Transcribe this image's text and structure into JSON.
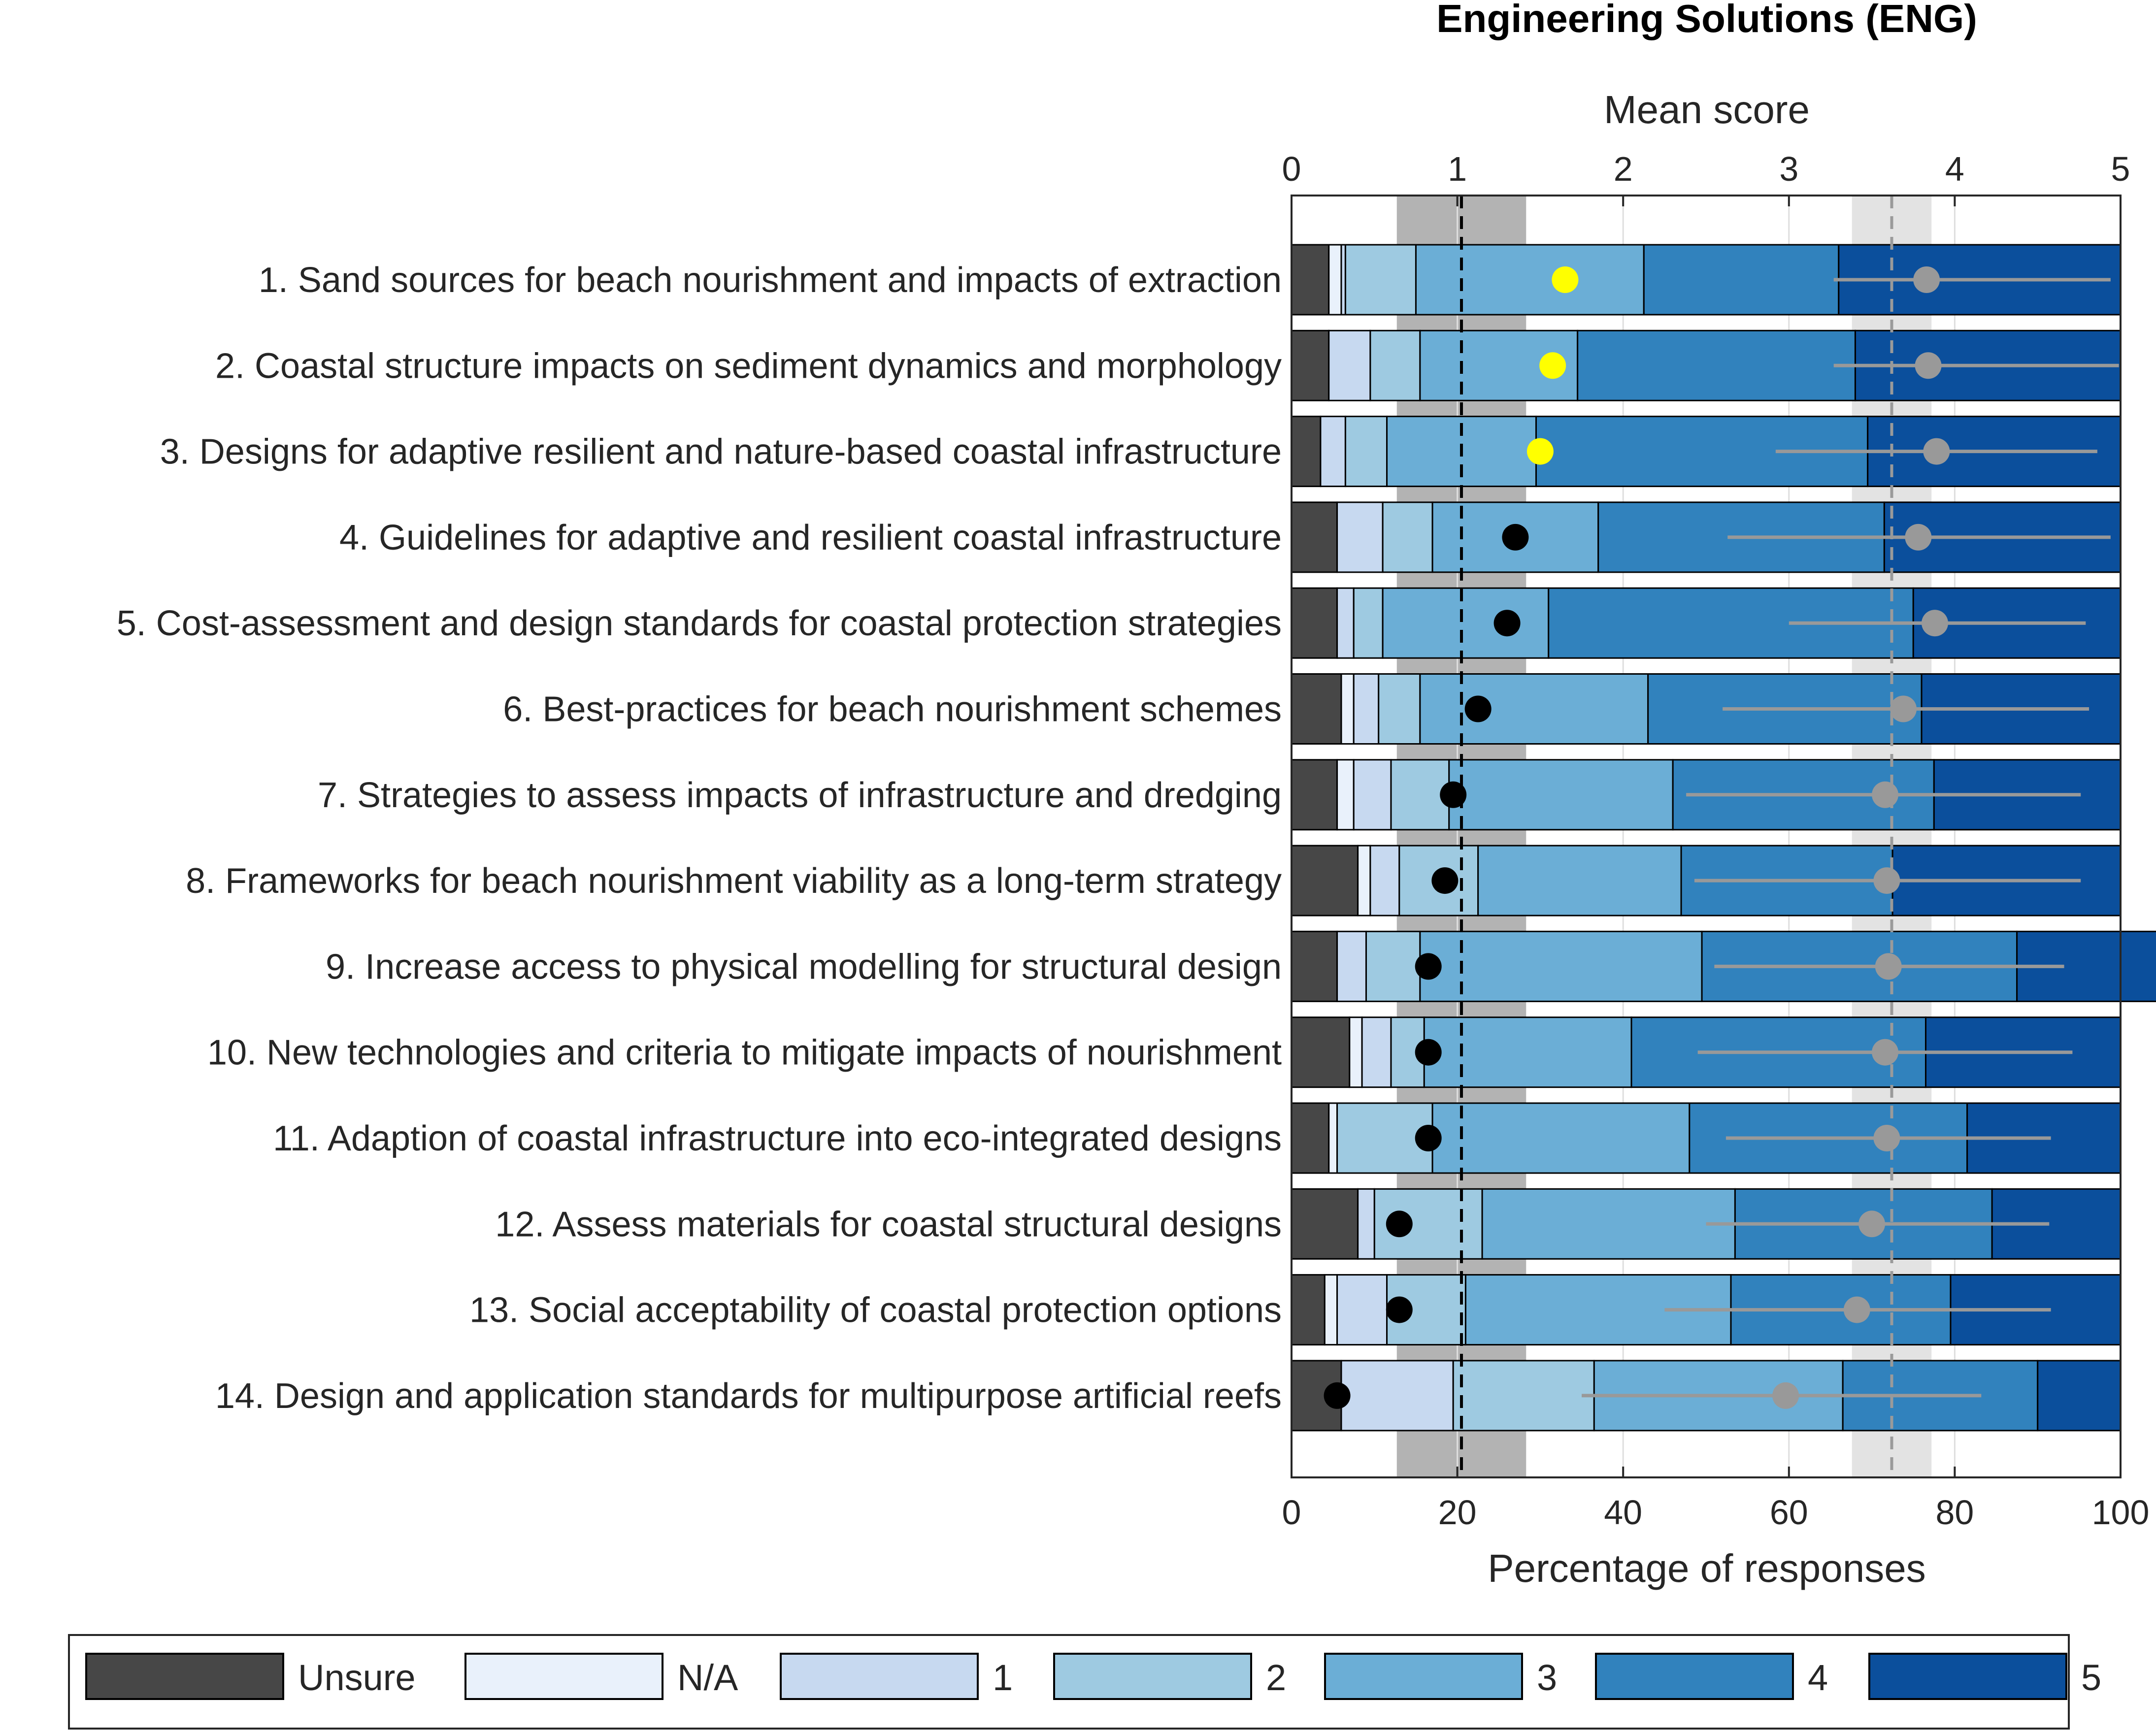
{
  "chart_data": {
    "type": "bar",
    "orientation": "horizontal-stacked",
    "title": "Engineering Solutions (ENG)",
    "xlabel_top": "Mean score",
    "xlabel_bottom": "Percentage of responses",
    "xlim_top": [
      0,
      5
    ],
    "xlim_bottom": [
      0,
      100
    ],
    "ticks_top": [
      "0",
      "1",
      "2",
      "3",
      "4",
      "5"
    ],
    "ticks_bottom": [
      "0",
      "20",
      "40",
      "60",
      "80",
      "100"
    ],
    "grid": true,
    "legend_position": "bottom",
    "categories": [
      "1. Sand sources for beach nourishment and impacts of extraction",
      "2. Coastal structure impacts on sediment dynamics and morphology",
      "3. Designs for adaptive resilient and nature-based coastal infrastructure",
      "4. Guidelines for adaptive and resilient coastal infrastructure",
      "5. Cost-assessment and design standards for coastal protection strategies",
      "6. Best-practices for beach nourishment schemes",
      "7. Strategies to assess impacts of infrastructure and dredging",
      "8. Frameworks for beach nourishment viability as a long-term strategy",
      "9. Increase access to physical modelling for structural design",
      "10. New technologies and criteria to mitigate impacts of nourishment",
      "11. Adaption of coastal infrastructure into eco-integrated designs",
      "12. Assess materials for coastal structural designs",
      "13. Social acceptability of coastal protection options",
      "14. Design and application standards for multipurpose artificial reefs"
    ],
    "series": [
      {
        "name": "Unsure",
        "color": "#474747",
        "values": [
          4.5,
          4.5,
          3.5,
          5.5,
          5.5,
          6.0,
          5.5,
          8.0,
          5.5,
          7.0,
          4.5,
          8.0,
          4.0,
          6.0
        ]
      },
      {
        "name": "N/A",
        "color": "#e9f1fb",
        "values": [
          1.5,
          0.0,
          0.0,
          0.0,
          0.0,
          1.5,
          2.0,
          1.5,
          0.0,
          1.5,
          1.0,
          0.0,
          1.5,
          0.0
        ]
      },
      {
        "name": "1",
        "color": "#c7d9f0",
        "values": [
          0.5,
          5.0,
          3.0,
          5.5,
          2.0,
          3.0,
          4.5,
          3.5,
          3.5,
          3.5,
          0.0,
          2.0,
          6.0,
          13.5
        ]
      },
      {
        "name": "2",
        "color": "#9ecae1",
        "values": [
          8.5,
          6.0,
          5.0,
          6.0,
          3.5,
          5.0,
          7.0,
          9.5,
          6.5,
          4.0,
          11.5,
          13.0,
          9.5,
          17.0
        ]
      },
      {
        "name": "3",
        "color": "#6baed6",
        "values": [
          27.5,
          19.0,
          18.0,
          20.0,
          20.0,
          27.5,
          27.0,
          24.5,
          34.0,
          25.0,
          31.0,
          30.5,
          32.0,
          30.0
        ]
      },
      {
        "name": "4",
        "color": "#3182bd",
        "values": [
          23.5,
          33.5,
          40.0,
          34.5,
          44.0,
          33.0,
          31.5,
          25.5,
          38.0,
          35.5,
          33.5,
          31.0,
          26.5,
          23.5
        ]
      },
      {
        "name": "5",
        "color": "#0b4f9c",
        "values": [
          34.0,
          32.0,
          30.5,
          28.5,
          25.0,
          24.0,
          22.5,
          27.5,
          18.5,
          23.5,
          18.5,
          15.5,
          20.5,
          10.0
        ]
      }
    ],
    "mean_score": [
      3.83,
      3.84,
      3.89,
      3.78,
      3.88,
      3.69,
      3.58,
      3.59,
      3.6,
      3.58,
      3.59,
      3.5,
      3.41,
      2.98
    ],
    "mean_score_error": [
      [
        3.27,
        4.94
      ],
      [
        3.27,
        4.99
      ],
      [
        2.92,
        4.86
      ],
      [
        2.63,
        4.94
      ],
      [
        3.0,
        4.79
      ],
      [
        2.6,
        4.81
      ],
      [
        2.38,
        4.76
      ],
      [
        2.43,
        4.76
      ],
      [
        2.55,
        4.66
      ],
      [
        2.45,
        4.71
      ],
      [
        2.62,
        4.58
      ],
      [
        2.5,
        4.57
      ],
      [
        2.25,
        4.58
      ],
      [
        1.75,
        4.16
      ]
    ],
    "mean_score_color": "#999999",
    "percent_marker": [
      33,
      31.5,
      30,
      27,
      26,
      22.5,
      19.5,
      18.5,
      16.5,
      16.5,
      16.5,
      13,
      13,
      5.5
    ],
    "percent_marker_highlight": [
      true,
      true,
      true,
      false,
      false,
      false,
      false,
      false,
      false,
      false,
      false,
      false,
      false,
      false
    ],
    "percent_marker_colors": {
      "highlight": "#ffff00",
      "normal": "#000000"
    },
    "reference_bands": {
      "percent_line": 20.5,
      "percent_band": [
        12.7,
        28.3
      ],
      "percent_band_color": "#b3b3b3",
      "mean_line": 3.62,
      "mean_band": [
        3.38,
        3.86
      ],
      "mean_band_color": "#e3e3e3"
    }
  }
}
